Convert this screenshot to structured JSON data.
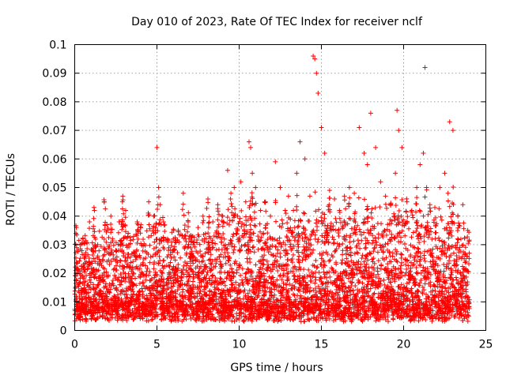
{
  "chart_data": {
    "type": "scatter",
    "title": "Day 010 of 2023, Rate Of TEC Index for receiver nclf",
    "xlabel": "GPS time / hours",
    "ylabel": "ROTI / TECUs",
    "xlim": [
      0,
      25
    ],
    "ylim": [
      0,
      0.1
    ],
    "xticks": [
      0,
      5,
      10,
      15,
      20,
      25
    ],
    "yticks": [
      0,
      0.01,
      0.02,
      0.03,
      0.04,
      0.05,
      0.06,
      0.07,
      0.08,
      0.09,
      0.1
    ],
    "xtick_labels": [
      "0",
      "5",
      "10",
      "15",
      "20",
      "25"
    ],
    "ytick_labels": [
      "0",
      "0.01",
      "0.02",
      "0.03",
      "0.04",
      "0.05",
      "0.06",
      "0.07",
      "0.08",
      "0.09",
      "0.1"
    ],
    "grid": true,
    "marker": "+",
    "color": "#ff0000",
    "series": [
      {
        "name": "ROTI",
        "x": [
          0.1,
          0.2,
          0.3,
          0.5,
          0.7,
          0.9,
          1.2,
          1.4,
          1.6,
          1.8,
          2.0,
          2.2,
          2.5,
          2.7,
          2.9,
          3.1,
          3.3,
          3.6,
          3.8,
          4.0,
          4.2,
          4.5,
          4.8,
          5.0,
          5.1,
          5.2,
          5.4,
          5.7,
          6.0,
          6.3,
          6.6,
          6.9,
          7.2,
          7.5,
          7.8,
          8.1,
          8.4,
          8.7,
          9.0,
          9.3,
          9.5,
          9.7,
          9.9,
          10.1,
          10.4,
          10.6,
          10.7,
          10.8,
          11.0,
          11.3,
          11.6,
          11.9,
          12.2,
          12.5,
          12.8,
          13.0,
          13.3,
          13.5,
          13.7,
          14.0,
          14.3,
          14.5,
          14.6,
          14.7,
          14.8,
          15.0,
          15.2,
          15.5,
          15.8,
          16.1,
          16.4,
          16.7,
          17.0,
          17.3,
          17.6,
          17.8,
          18.0,
          18.3,
          18.6,
          18.9,
          19.2,
          19.5,
          19.6,
          19.7,
          19.9,
          20.2,
          20.5,
          20.8,
          21.0,
          21.2,
          21.3,
          21.4,
          21.6,
          21.9,
          22.2,
          22.5,
          22.7,
          22.8,
          23.0,
          23.3,
          23.6,
          23.9
        ],
        "y": [
          0.036,
          0.028,
          0.012,
          0.032,
          0.024,
          0.038,
          0.042,
          0.03,
          0.018,
          0.045,
          0.035,
          0.04,
          0.028,
          0.038,
          0.045,
          0.042,
          0.03,
          0.016,
          0.038,
          0.036,
          0.025,
          0.045,
          0.04,
          0.064,
          0.05,
          0.044,
          0.038,
          0.028,
          0.032,
          0.035,
          0.048,
          0.038,
          0.03,
          0.036,
          0.04,
          0.046,
          0.038,
          0.044,
          0.04,
          0.056,
          0.048,
          0.05,
          0.04,
          0.052,
          0.045,
          0.066,
          0.064,
          0.055,
          0.05,
          0.042,
          0.045,
          0.04,
          0.059,
          0.05,
          0.042,
          0.047,
          0.042,
          0.055,
          0.066,
          0.06,
          0.047,
          0.096,
          0.095,
          0.09,
          0.083,
          0.071,
          0.062,
          0.049,
          0.046,
          0.042,
          0.047,
          0.05,
          0.048,
          0.071,
          0.062,
          0.058,
          0.076,
          0.064,
          0.052,
          0.047,
          0.044,
          0.055,
          0.077,
          0.07,
          0.064,
          0.045,
          0.042,
          0.05,
          0.058,
          0.062,
          0.092,
          0.05,
          0.044,
          0.043,
          0.05,
          0.055,
          0.048,
          0.073,
          0.07,
          0.04,
          0.044,
          0.035
        ]
      }
    ],
    "background_band": {
      "note": "dense point cloud between these ROTI values over the full day",
      "min": 0.003,
      "typical_max": 0.03
    }
  }
}
